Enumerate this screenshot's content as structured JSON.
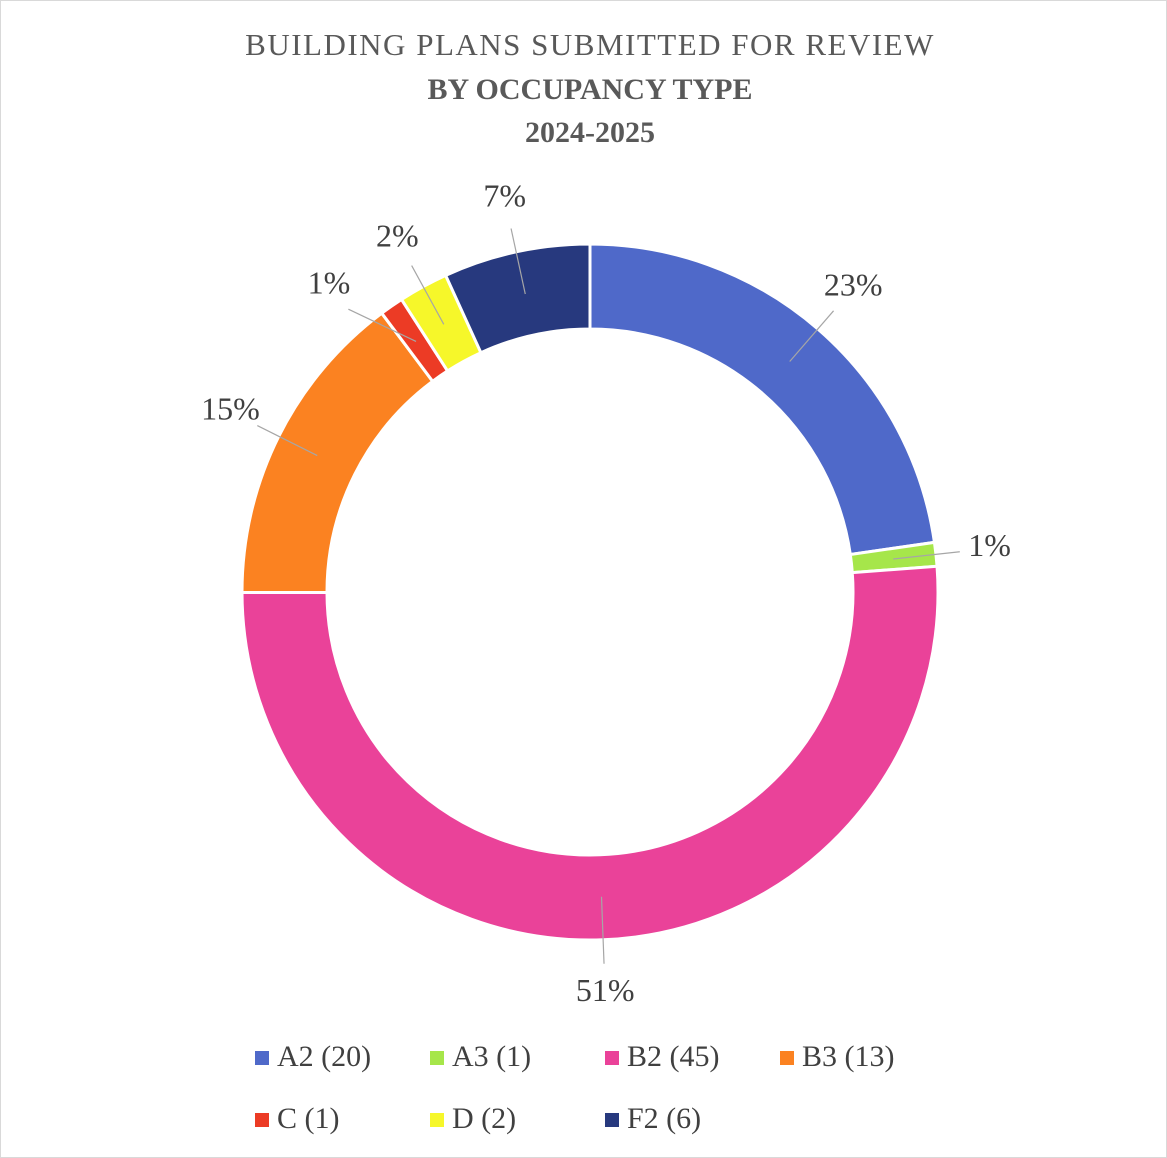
{
  "chart_data": {
    "type": "donut",
    "title": "BUILDING PLANS SUBMITTED FOR REVIEW",
    "subtitle": "BY OCCUPANCY TYPE",
    "period": "2024-2025",
    "categories": [
      "A2 (20)",
      "A3 (1)",
      "B2 (45)",
      "B3 (13)",
      "C (1)",
      "D (2)",
      "F2 (6)"
    ],
    "values": [
      22.7,
      1.1,
      51.1,
      14.8,
      1.1,
      2.3,
      6.8
    ],
    "value_labels": [
      "23%",
      "1%",
      "51%",
      "15%",
      "1%",
      "2%",
      "7%"
    ],
    "colors": [
      "#4f69c9",
      "#a6e64a",
      "#ea4299",
      "#fb8221",
      "#ec3b25",
      "#f6f72a",
      "#27397e"
    ],
    "legend": "bottom"
  }
}
